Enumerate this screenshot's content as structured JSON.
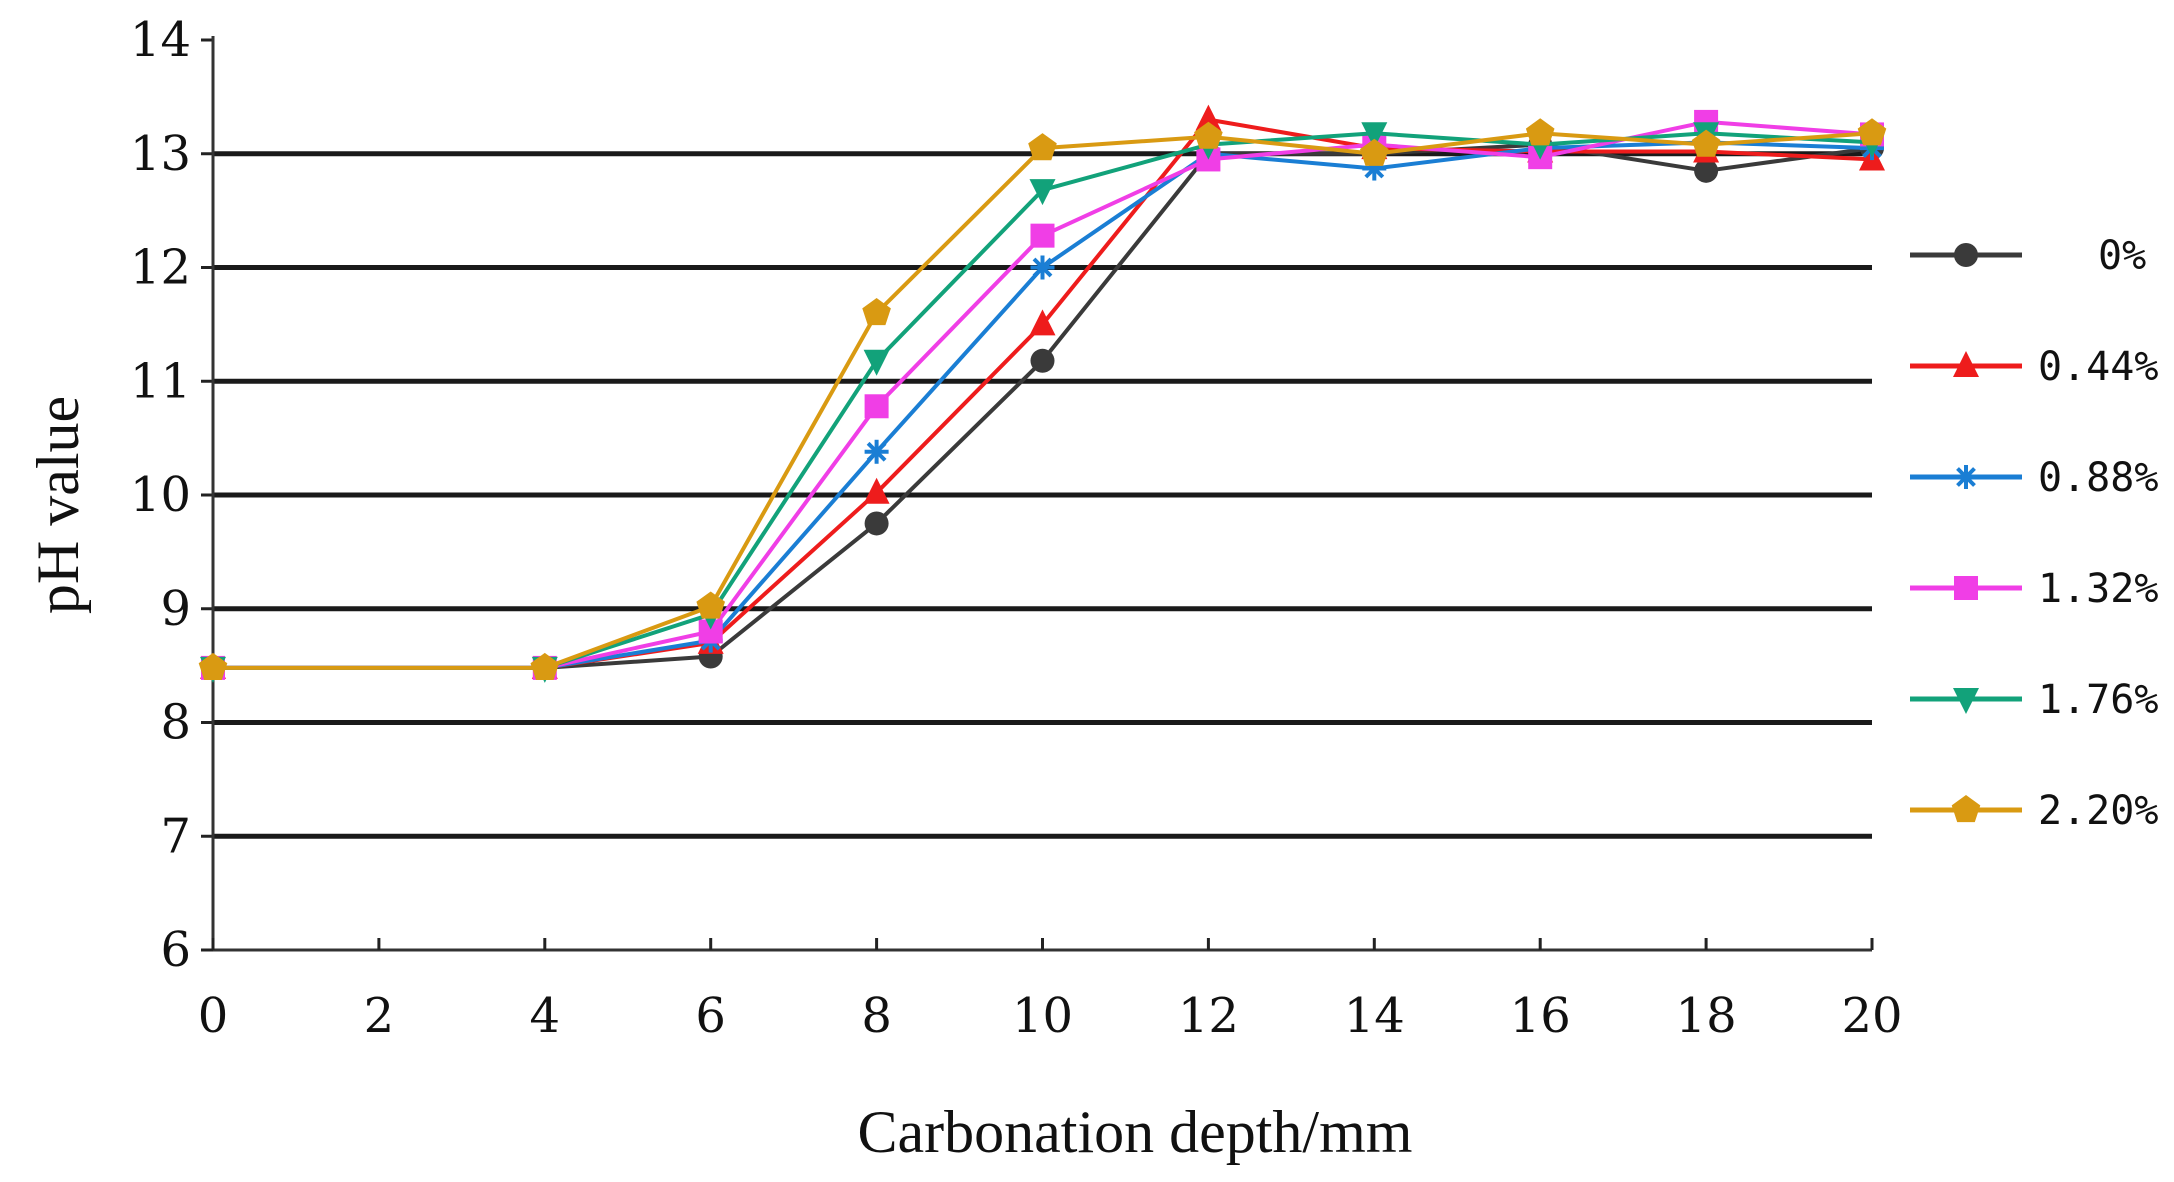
{
  "chart_data": {
    "type": "line",
    "title": "",
    "xlabel": "Carbonation depth/mm",
    "ylabel": "pH value",
    "xlim": [
      0,
      20
    ],
    "ylim": [
      6,
      14
    ],
    "x_ticks": [
      0,
      2,
      4,
      6,
      8,
      10,
      12,
      14,
      16,
      18,
      20
    ],
    "y_ticks": [
      6,
      7,
      8,
      9,
      10,
      11,
      12,
      13,
      14
    ],
    "grid": "horizontal",
    "legend_position": "right",
    "series": [
      {
        "name": "0%",
        "color": "#3a3a3a",
        "marker": "circle",
        "x": [
          0,
          4,
          6,
          8,
          10,
          12,
          14,
          16,
          18,
          20
        ],
        "values": [
          8.48,
          8.48,
          8.58,
          9.75,
          11.18,
          13.0,
          13.0,
          13.08,
          12.85,
          13.05
        ]
      },
      {
        "name": "0.44%",
        "color": "#ee1c1c",
        "marker": "triangle-up",
        "x": [
          0,
          4,
          6,
          8,
          10,
          12,
          14,
          16,
          18,
          20
        ],
        "values": [
          8.48,
          8.48,
          8.7,
          10.02,
          11.5,
          13.3,
          13.05,
          13.02,
          13.02,
          12.95
        ]
      },
      {
        "name": "0.88%",
        "color": "#1a7ed4",
        "marker": "asterisk",
        "x": [
          0,
          4,
          6,
          8,
          10,
          12,
          14,
          16,
          18,
          20
        ],
        "values": [
          8.48,
          8.48,
          8.72,
          10.38,
          12.0,
          13.0,
          12.87,
          13.05,
          13.1,
          13.05
        ]
      },
      {
        "name": "1.32%",
        "color": "#f03ee6",
        "marker": "square",
        "x": [
          0,
          4,
          6,
          8,
          10,
          12,
          14,
          16,
          18,
          20
        ],
        "values": [
          8.48,
          8.48,
          8.8,
          10.78,
          12.28,
          12.95,
          13.08,
          12.97,
          13.28,
          13.17
        ]
      },
      {
        "name": "1.76%",
        "color": "#12a27a",
        "marker": "triangle-down",
        "x": [
          0,
          4,
          6,
          8,
          10,
          12,
          14,
          16,
          18,
          20
        ],
        "values": [
          8.48,
          8.48,
          8.95,
          11.18,
          12.68,
          13.08,
          13.18,
          13.08,
          13.18,
          13.1
        ]
      },
      {
        "name": "2.20%",
        "color": "#d99a12",
        "marker": "pentagon",
        "x": [
          0,
          4,
          6,
          8,
          10,
          12,
          14,
          16,
          18,
          20
        ],
        "values": [
          8.48,
          8.48,
          9.02,
          11.6,
          13.05,
          13.15,
          13.0,
          13.18,
          13.08,
          13.18
        ]
      }
    ]
  }
}
